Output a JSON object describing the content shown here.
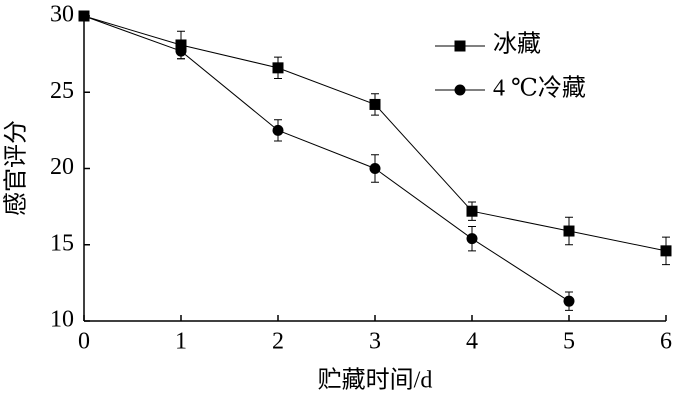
{
  "chart_data": {
    "type": "line",
    "xlabel": "贮藏时间/d",
    "ylabel": "感官评分",
    "x": [
      0,
      1,
      2,
      3,
      4,
      5,
      6
    ],
    "series": [
      {
        "name": "冰藏",
        "color": "#000000",
        "marker": "square",
        "values": [
          30,
          28.1,
          26.6,
          24.2,
          17.2,
          15.9,
          14.6
        ],
        "errors": [
          0,
          0.9,
          0.7,
          0.7,
          0.6,
          0.9,
          0.9
        ]
      },
      {
        "name": "4 ℃冷藏",
        "color": "#000000",
        "marker": "circle",
        "values": [
          30,
          27.7,
          22.5,
          20.0,
          15.4,
          11.3,
          null
        ],
        "errors": [
          0,
          0.5,
          0.7,
          0.9,
          0.8,
          0.6,
          null
        ]
      }
    ],
    "xlim": [
      0,
      6
    ],
    "xticks": [
      0,
      1,
      2,
      3,
      4,
      5,
      6
    ],
    "ylim": [
      10,
      30
    ],
    "yticks": [
      10,
      15,
      20,
      25,
      30
    ],
    "grid": false,
    "legend": "upper right"
  }
}
